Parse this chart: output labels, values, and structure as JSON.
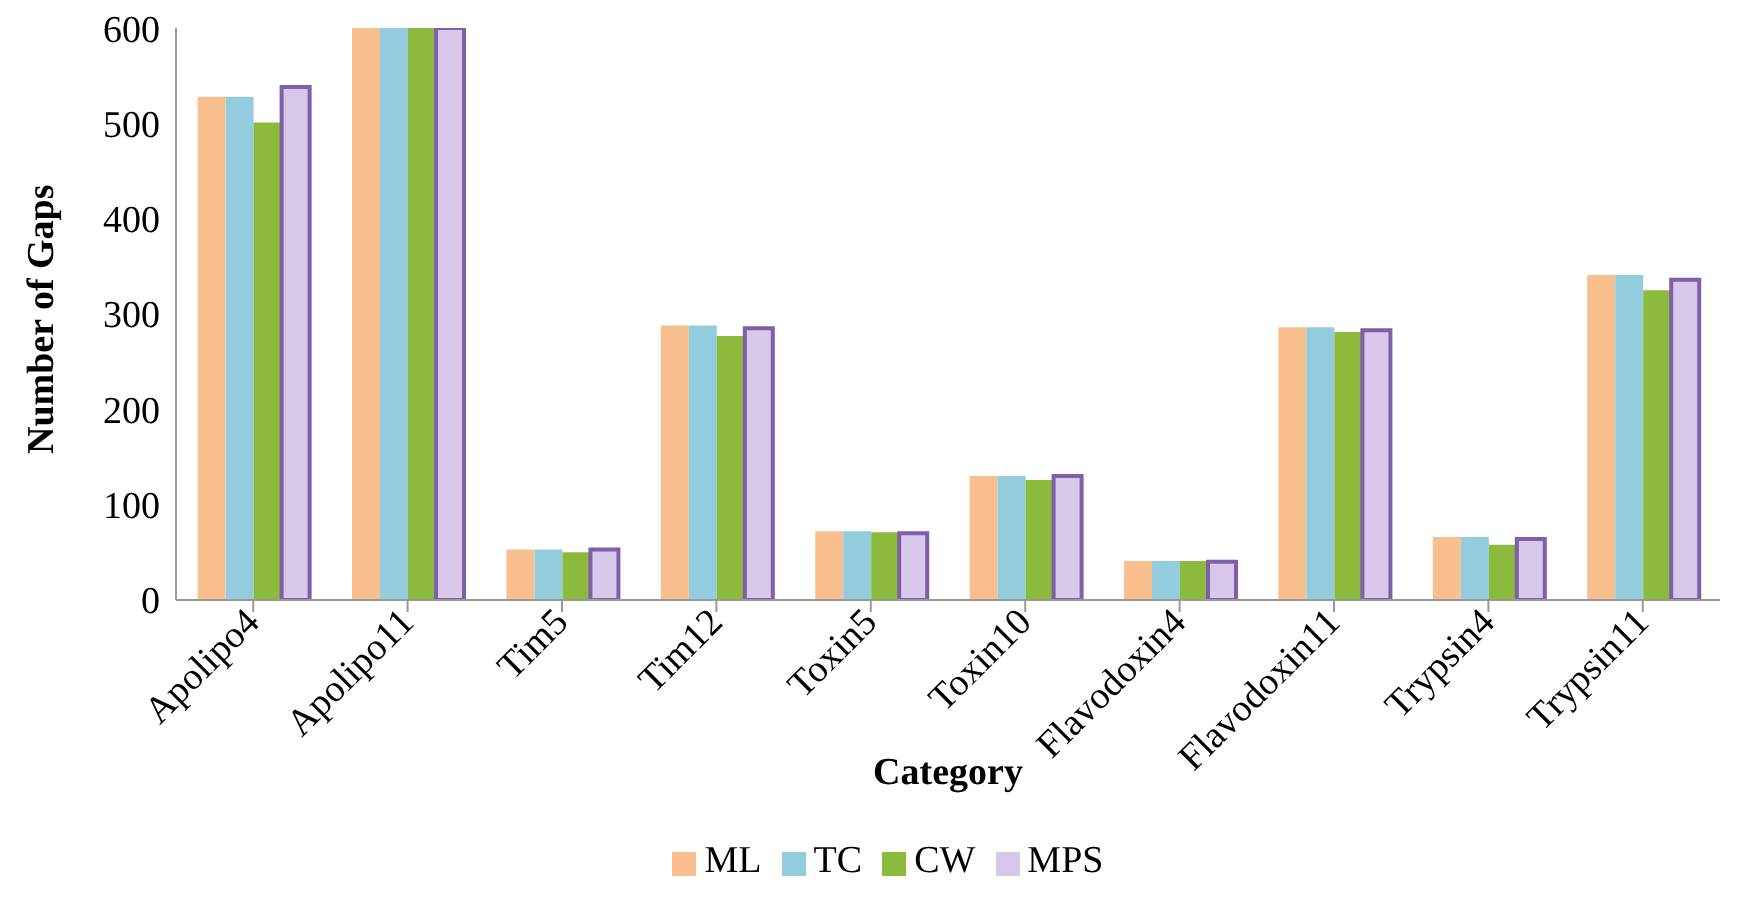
{
  "chart_data": {
    "type": "bar",
    "xlabel": "Category",
    "ylabel": "Number of Gaps",
    "categories": [
      "Apolipo4",
      "Apolipo11",
      "Tim5",
      "Tim12",
      "Toxin5",
      "Toxin10",
      "Flavodoxin4",
      "Flavodoxin11",
      "Trypsin4",
      "Trypsin11"
    ],
    "series": [
      {
        "name": "ML",
        "color": "#f9bf8f",
        "values": [
          528,
          600,
          53,
          288,
          72,
          130,
          41,
          286,
          66,
          341
        ]
      },
      {
        "name": "TC",
        "color": "#93cddd",
        "values": [
          528,
          600,
          53,
          288,
          72,
          130,
          41,
          286,
          66,
          341
        ]
      },
      {
        "name": "CW",
        "color": "#8cba3c",
        "values": [
          501,
          600,
          50,
          277,
          71,
          126,
          41,
          281,
          58,
          325
        ]
      },
      {
        "name": "MPS",
        "color": "#d8c9ea",
        "values": [
          538,
          600,
          53,
          285,
          70,
          130,
          40,
          283,
          64,
          336
        ]
      }
    ],
    "ylim": [
      0,
      600
    ],
    "yticks": [
      0,
      100,
      200,
      300,
      400,
      500,
      600
    ],
    "grid": false,
    "legend": "bottom"
  }
}
